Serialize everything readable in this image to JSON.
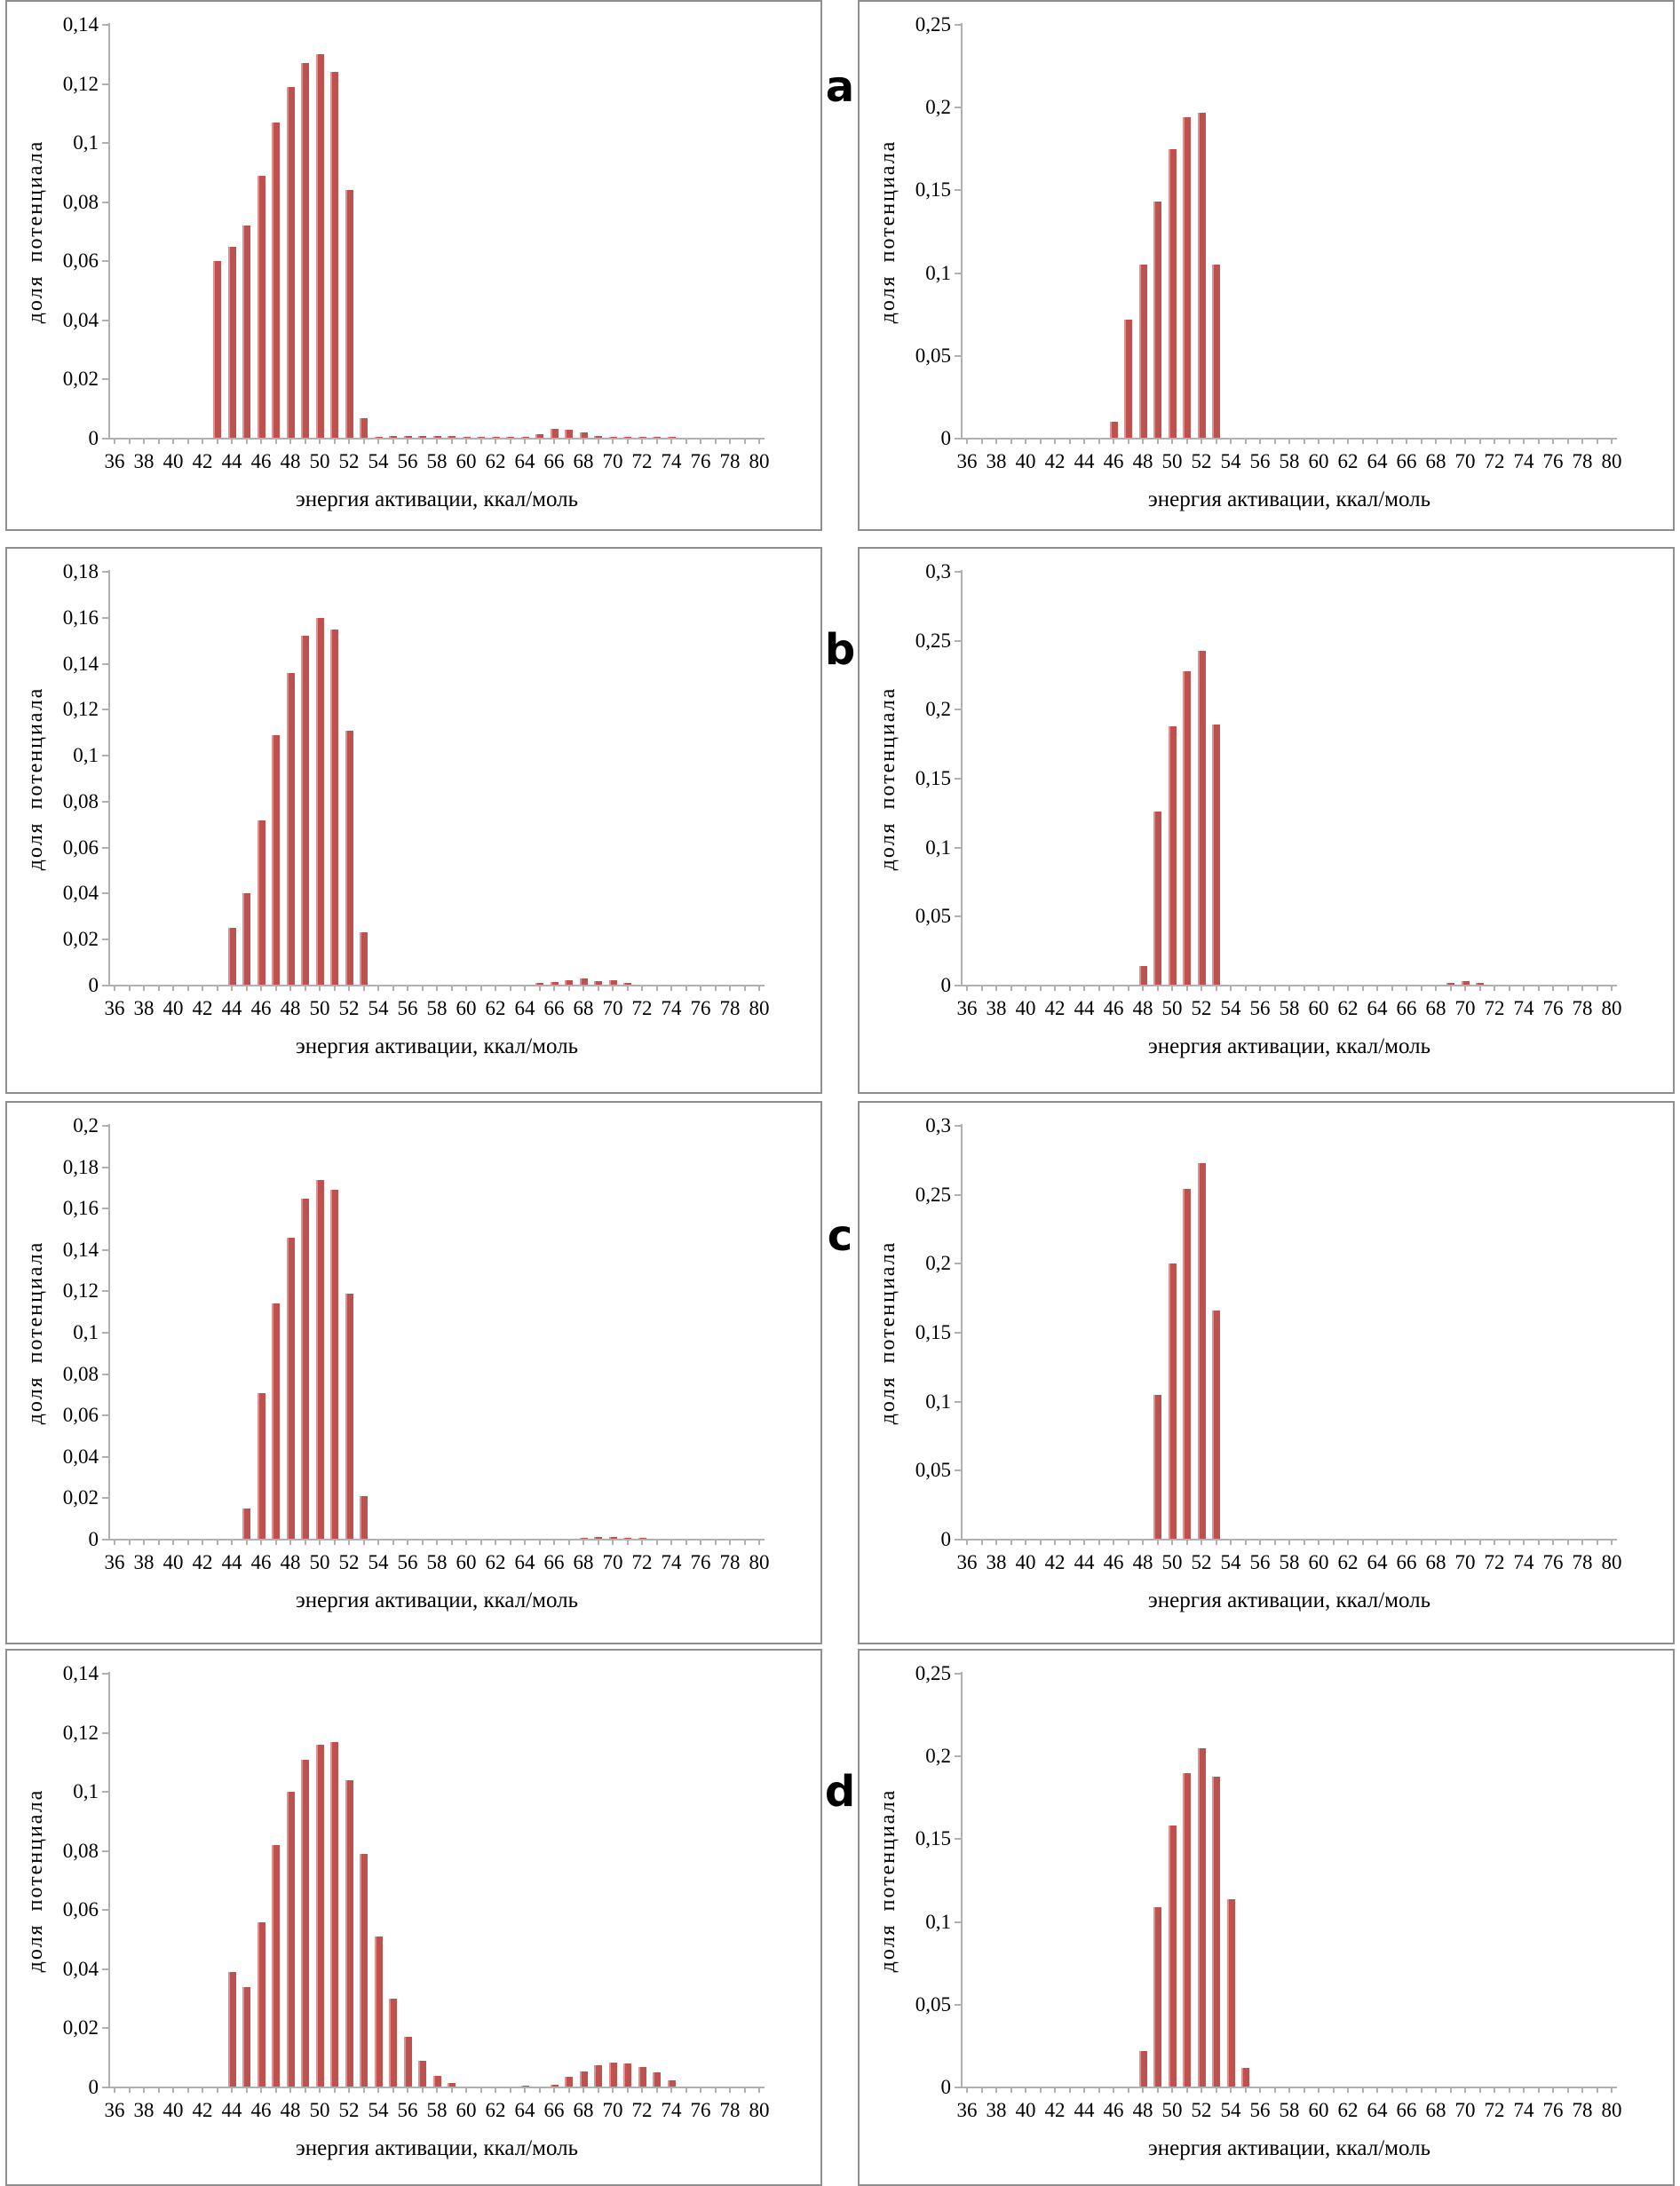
{
  "figure": {
    "row_labels": [
      "a",
      "b",
      "c",
      "d"
    ],
    "x_tick_labels": [
      "36",
      "38",
      "40",
      "42",
      "44",
      "46",
      "48",
      "50",
      "52",
      "54",
      "56",
      "58",
      "60",
      "62",
      "64",
      "66",
      "68",
      "70",
      "72",
      "74",
      "76",
      "78",
      "80"
    ]
  },
  "colors": {
    "bar_fill": "#c0504d",
    "bar_highlight": "#d99492",
    "axis_line": "#b0b0b0",
    "panel_border": "#8f8f8f",
    "text": "#000000",
    "background": "#ffffff"
  },
  "chart_data": [
    {
      "id": "a-left",
      "row": "a",
      "position": "left",
      "type": "bar",
      "title": "",
      "xlabel": "энергия активации, ккал/моль",
      "ylabel": "доля потенциала",
      "xlim": [
        35,
        81
      ],
      "ylim": [
        0,
        0.14
      ],
      "ytick_step": 0.02,
      "grid": false,
      "y_tick_labels": [
        "0",
        "0,02",
        "0,04",
        "0,06",
        "0,08",
        "0,1",
        "0,12",
        "0,14"
      ],
      "x_tick_labels": [
        "36",
        "38",
        "40",
        "42",
        "44",
        "46",
        "48",
        "50",
        "52",
        "54",
        "56",
        "58",
        "60",
        "62",
        "64",
        "66",
        "68",
        "70",
        "72",
        "74",
        "76",
        "78",
        "80"
      ],
      "x": [
        43,
        44,
        45,
        46,
        47,
        48,
        49,
        50,
        51,
        52,
        53,
        54,
        55,
        56,
        57,
        58,
        59,
        60,
        61,
        62,
        63,
        64,
        65,
        66,
        67,
        68,
        69,
        70,
        71,
        72,
        73,
        74
      ],
      "values": [
        0.06,
        0.065,
        0.072,
        0.089,
        0.107,
        0.119,
        0.127,
        0.13,
        0.124,
        0.084,
        0.007,
        0.0005,
        0.0008,
        0.0008,
        0.0008,
        0.001,
        0.0008,
        0.0006,
        0.0005,
        0.0007,
        0.0005,
        0.0007,
        0.0015,
        0.0033,
        0.003,
        0.002,
        0.001,
        0.0007,
        0.0005,
        0.0007,
        0.0007,
        0.0007
      ]
    },
    {
      "id": "a-right",
      "row": "a",
      "position": "right",
      "type": "bar",
      "title": "",
      "xlabel": "энергия активации, ккал/моль",
      "ylabel": "доля потенциала",
      "xlim": [
        35,
        81
      ],
      "ylim": [
        0,
        0.25
      ],
      "ytick_step": 0.05,
      "grid": false,
      "y_tick_labels": [
        "0",
        "0,05",
        "0,1",
        "0,15",
        "0,2",
        "0,25"
      ],
      "x_tick_labels": [
        "36",
        "38",
        "40",
        "42",
        "44",
        "46",
        "48",
        "50",
        "52",
        "54",
        "56",
        "58",
        "60",
        "62",
        "64",
        "66",
        "68",
        "70",
        "72",
        "74",
        "76",
        "78",
        "80"
      ],
      "x": [
        46,
        47,
        48,
        49,
        50,
        51,
        52,
        53
      ],
      "values": [
        0.01,
        0.072,
        0.105,
        0.143,
        0.175,
        0.194,
        0.197,
        0.105
      ]
    },
    {
      "id": "b-left",
      "row": "b",
      "position": "left",
      "type": "bar",
      "title": "",
      "xlabel": "энергия активации, ккал/моль",
      "ylabel": "доля потенциала",
      "xlim": [
        35,
        81
      ],
      "ylim": [
        0,
        0.18
      ],
      "ytick_step": 0.02,
      "grid": false,
      "y_tick_labels": [
        "0",
        "0,02",
        "0,04",
        "0,06",
        "0,08",
        "0,1",
        "0,12",
        "0,14",
        "0,16",
        "0,18"
      ],
      "x_tick_labels": [
        "36",
        "38",
        "40",
        "42",
        "44",
        "46",
        "48",
        "50",
        "52",
        "54",
        "56",
        "58",
        "60",
        "62",
        "64",
        "66",
        "68",
        "70",
        "72",
        "74",
        "76",
        "78",
        "80"
      ],
      "x": [
        44,
        45,
        46,
        47,
        48,
        49,
        50,
        51,
        52,
        53,
        65,
        66,
        67,
        68,
        69,
        70,
        71
      ],
      "values": [
        0.025,
        0.04,
        0.072,
        0.109,
        0.136,
        0.152,
        0.16,
        0.155,
        0.111,
        0.023,
        0.001,
        0.0015,
        0.0025,
        0.003,
        0.002,
        0.0022,
        0.0012
      ]
    },
    {
      "id": "b-right",
      "row": "b",
      "position": "right",
      "type": "bar",
      "title": "",
      "xlabel": "энергия активации, ккал/моль",
      "ylabel": "доля потенциала",
      "xlim": [
        35,
        81
      ],
      "ylim": [
        0,
        0.3
      ],
      "ytick_step": 0.05,
      "grid": false,
      "y_tick_labels": [
        "0",
        "0,05",
        "0,1",
        "0,15",
        "0,2",
        "0,25",
        "0,3"
      ],
      "x_tick_labels": [
        "36",
        "38",
        "40",
        "42",
        "44",
        "46",
        "48",
        "50",
        "52",
        "54",
        "56",
        "58",
        "60",
        "62",
        "64",
        "66",
        "68",
        "70",
        "72",
        "74",
        "76",
        "78",
        "80"
      ],
      "x": [
        48,
        49,
        50,
        51,
        52,
        53,
        69,
        70,
        71
      ],
      "values": [
        0.014,
        0.126,
        0.188,
        0.228,
        0.243,
        0.189,
        0.002,
        0.003,
        0.002
      ]
    },
    {
      "id": "c-left",
      "row": "c",
      "position": "left",
      "type": "bar",
      "title": "",
      "xlabel": "энергия активации, ккал/моль",
      "ylabel": "доля потенциала",
      "xlim": [
        35,
        81
      ],
      "ylim": [
        0,
        0.2
      ],
      "ytick_step": 0.02,
      "grid": false,
      "y_tick_labels": [
        "0",
        "0,02",
        "0,04",
        "0,06",
        "0,08",
        "0,1",
        "0,12",
        "0,14",
        "0,16",
        "0,18",
        "0,2"
      ],
      "x_tick_labels": [
        "36",
        "38",
        "40",
        "42",
        "44",
        "46",
        "48",
        "50",
        "52",
        "54",
        "56",
        "58",
        "60",
        "62",
        "64",
        "66",
        "68",
        "70",
        "72",
        "74",
        "76",
        "78",
        "80"
      ],
      "x": [
        45,
        46,
        47,
        48,
        49,
        50,
        51,
        52,
        53,
        61,
        62,
        63,
        64,
        65,
        66,
        67,
        68,
        69,
        70,
        71,
        72,
        73,
        74,
        75,
        76,
        78
      ],
      "values": [
        0.015,
        0.071,
        0.114,
        0.146,
        0.165,
        0.174,
        0.169,
        0.119,
        0.021,
        0.0005,
        0.0006,
        0.0005,
        0.0006,
        0.0005,
        0.0006,
        0.0006,
        0.001,
        0.0013,
        0.0014,
        0.001,
        0.0007,
        0.0005,
        0.0006,
        0.0005,
        0.0006,
        0.0006
      ]
    },
    {
      "id": "c-right",
      "row": "c",
      "position": "right",
      "type": "bar",
      "title": "",
      "xlabel": "энергия активации, ккал/моль",
      "ylabel": "доля потенциала",
      "xlim": [
        35,
        81
      ],
      "ylim": [
        0,
        0.3
      ],
      "ytick_step": 0.05,
      "grid": false,
      "y_tick_labels": [
        "0",
        "0,05",
        "0,1",
        "0,15",
        "0,2",
        "0,25",
        "0,3"
      ],
      "x_tick_labels": [
        "36",
        "38",
        "40",
        "42",
        "44",
        "46",
        "48",
        "50",
        "52",
        "54",
        "56",
        "58",
        "60",
        "62",
        "64",
        "66",
        "68",
        "70",
        "72",
        "74",
        "76",
        "78",
        "80"
      ],
      "x": [
        49,
        50,
        51,
        52,
        53
      ],
      "values": [
        0.105,
        0.2,
        0.254,
        0.273,
        0.166
      ]
    },
    {
      "id": "d-left",
      "row": "d",
      "position": "left",
      "type": "bar",
      "title": "",
      "xlabel": "энергия активации, ккал/моль",
      "ylabel": "доля потенциала",
      "xlim": [
        35,
        81
      ],
      "ylim": [
        0,
        0.14
      ],
      "ytick_step": 0.02,
      "grid": false,
      "y_tick_labels": [
        "0",
        "0,02",
        "0,04",
        "0,06",
        "0,08",
        "0,1",
        "0,12",
        "0,14"
      ],
      "x_tick_labels": [
        "36",
        "38",
        "40",
        "42",
        "44",
        "46",
        "48",
        "50",
        "52",
        "54",
        "56",
        "58",
        "60",
        "62",
        "64",
        "66",
        "68",
        "70",
        "72",
        "74",
        "76",
        "78",
        "80"
      ],
      "x": [
        44,
        45,
        46,
        47,
        48,
        49,
        50,
        51,
        52,
        53,
        54,
        55,
        56,
        57,
        58,
        59,
        64,
        66,
        67,
        68,
        69,
        70,
        71,
        72,
        73,
        74
      ],
      "values": [
        0.039,
        0.034,
        0.056,
        0.082,
        0.1,
        0.111,
        0.116,
        0.117,
        0.104,
        0.079,
        0.051,
        0.03,
        0.017,
        0.009,
        0.004,
        0.0015,
        0.0005,
        0.001,
        0.0035,
        0.0055,
        0.0075,
        0.0085,
        0.008,
        0.007,
        0.005,
        0.0025
      ]
    },
    {
      "id": "d-right",
      "row": "d",
      "position": "right",
      "type": "bar",
      "title": "",
      "xlabel": "энергия активации, ккал/моль",
      "ylabel": "доля потенциала",
      "xlim": [
        35,
        81
      ],
      "ylim": [
        0,
        0.25
      ],
      "ytick_step": 0.05,
      "grid": false,
      "y_tick_labels": [
        "0",
        "0,05",
        "0,1",
        "0,15",
        "0,2",
        "0,25"
      ],
      "x_tick_labels": [
        "36",
        "38",
        "40",
        "42",
        "44",
        "46",
        "48",
        "50",
        "52",
        "54",
        "56",
        "58",
        "60",
        "62",
        "64",
        "66",
        "68",
        "70",
        "72",
        "74",
        "76",
        "78",
        "80"
      ],
      "x": [
        48,
        49,
        50,
        51,
        52,
        53,
        54,
        55
      ],
      "values": [
        0.022,
        0.109,
        0.158,
        0.19,
        0.205,
        0.188,
        0.114,
        0.012
      ]
    }
  ]
}
